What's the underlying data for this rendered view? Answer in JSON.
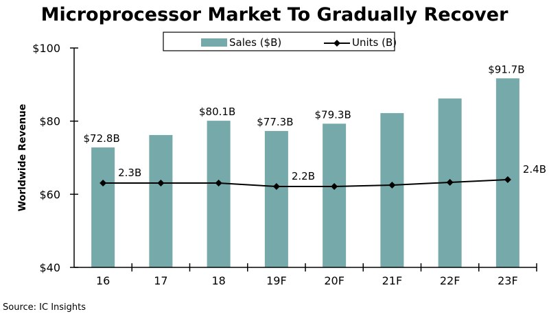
{
  "chart_data": {
    "type": "bar",
    "title": "Microprocessor Market To Gradually Recover",
    "ylabel": "Worldwide Revenue",
    "xlabel": "",
    "ylim": [
      40,
      100
    ],
    "yticks": [
      40,
      60,
      80,
      100
    ],
    "ytick_labels": [
      "$40",
      "$60",
      "$80",
      "$100"
    ],
    "categories": [
      "16",
      "17",
      "18",
      "19F",
      "20F",
      "21F",
      "22F",
      "23F"
    ],
    "series": [
      {
        "name": "Sales ($B)",
        "type": "bar",
        "color": "#76a9a9",
        "values": [
          72.8,
          76.2,
          80.1,
          77.3,
          79.3,
          82.2,
          86.2,
          91.7
        ],
        "labels": [
          "$72.8B",
          "",
          "$80.1B",
          "$77.3B",
          "$79.3B",
          "",
          "",
          "$91.7B"
        ]
      },
      {
        "name": "Units (B)",
        "type": "line",
        "color": "#000000",
        "marker": "diamond",
        "values": [
          2.3,
          2.3,
          2.3,
          2.2,
          2.2,
          2.24,
          2.32,
          2.4
        ],
        "labels": [
          "2.3B",
          "",
          "",
          "2.2B",
          "",
          "",
          "",
          "2.4B"
        ]
      }
    ],
    "legend": "top-center",
    "grid": false,
    "source": "Source:  IC Insights"
  }
}
